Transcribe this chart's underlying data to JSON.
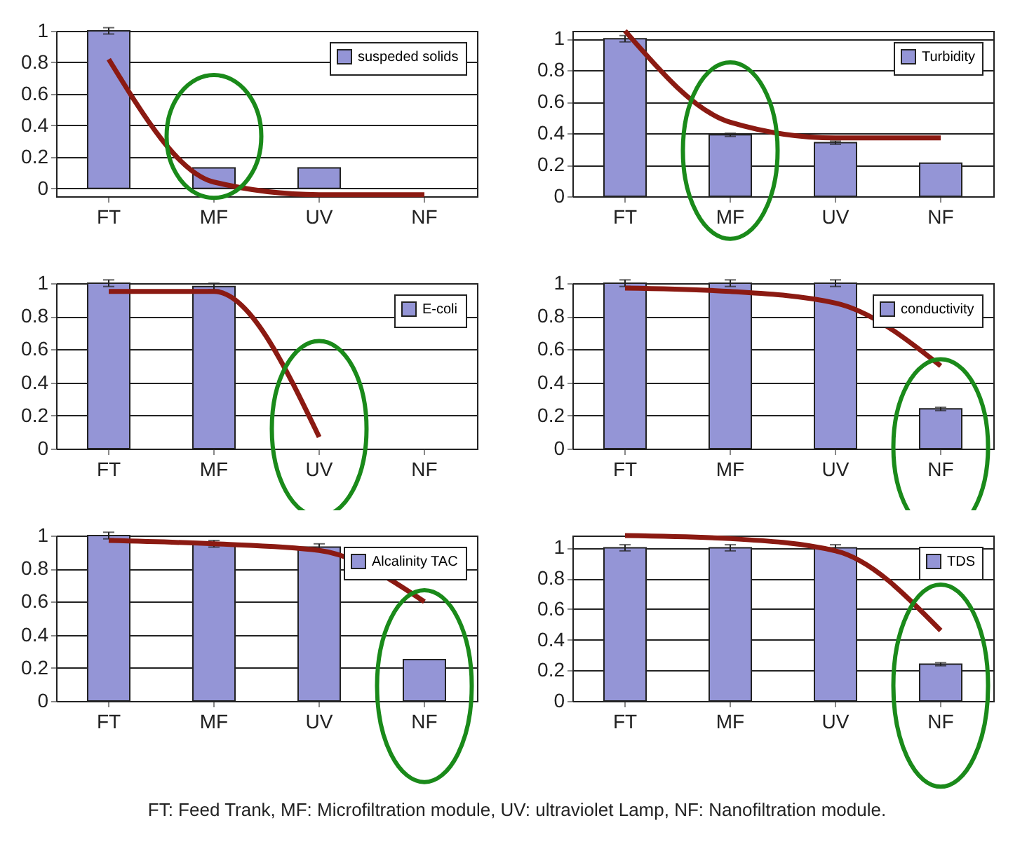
{
  "chart_data": [
    {
      "type": "bar",
      "categories": [
        "FT",
        "MF",
        "UV",
        "NF"
      ],
      "ylim": [
        -0.05,
        1
      ],
      "yticks": [
        0,
        0.2,
        0.4,
        0.6,
        0.8,
        1
      ],
      "grid": "y",
      "legend": "top right",
      "series": [
        {
          "name": "suspeded solids",
          "color": "#9495d6",
          "values": [
            1,
            0.13,
            0.13,
            0
          ],
          "errors": [
            0.02,
            null,
            null,
            null
          ]
        },
        {
          "type": "line",
          "color": "#8b1a12",
          "values": [
            0.82,
            0.04,
            -0.04,
            -0.04
          ]
        }
      ]
    },
    {
      "type": "bar",
      "categories": [
        "FT",
        "MF",
        "UV",
        "NF"
      ],
      "ylim": [
        0,
        1.05
      ],
      "yticks": [
        0,
        0.2,
        0.4,
        0.6,
        0.8,
        1
      ],
      "grid": "y",
      "legend": "top right",
      "series": [
        {
          "name": "Turbidity",
          "color": "#9495d6",
          "values": [
            1,
            0.39,
            0.34,
            0.21
          ],
          "errors": [
            0.02,
            0.01,
            0.01,
            null
          ]
        },
        {
          "type": "line",
          "color": "#8b1a12",
          "values": [
            1.05,
            0.47,
            0.37,
            0.37
          ]
        }
      ]
    },
    {
      "type": "bar",
      "categories": [
        "FT",
        "MF",
        "UV",
        "NF"
      ],
      "ylim": [
        0,
        1
      ],
      "yticks": [
        0,
        0.2,
        0.4,
        0.6,
        0.8,
        1
      ],
      "grid": "y",
      "legend": "top right",
      "series": [
        {
          "name": "E-coli",
          "color": "#9495d6",
          "values": [
            1,
            0.98,
            0,
            0
          ],
          "errors": [
            0.02,
            0.02,
            null,
            null
          ]
        },
        {
          "type": "line",
          "color": "#8b1a12",
          "values": [
            0.95,
            0.95,
            0.07,
            null
          ]
        }
      ]
    },
    {
      "type": "bar",
      "categories": [
        "FT",
        "MF",
        "UV",
        "NF"
      ],
      "ylim": [
        0,
        1
      ],
      "yticks": [
        0,
        0.2,
        0.4,
        0.6,
        0.8,
        1
      ],
      "grid": "y",
      "legend": "top right",
      "series": [
        {
          "name": "conductivity",
          "color": "#9495d6",
          "values": [
            1,
            1,
            1,
            0.24
          ],
          "errors": [
            0.02,
            0.02,
            0.02,
            0.01
          ]
        },
        {
          "type": "line",
          "color": "#8b1a12",
          "values": [
            0.97,
            0.95,
            0.88,
            0.5
          ]
        }
      ]
    },
    {
      "type": "bar",
      "categories": [
        "FT",
        "MF",
        "UV",
        "NF"
      ],
      "ylim": [
        0,
        1
      ],
      "yticks": [
        0,
        0.2,
        0.4,
        0.6,
        0.8,
        1
      ],
      "grid": "y",
      "legend": "top right",
      "series": [
        {
          "name": "Alcalinity TAC",
          "color": "#9495d6",
          "values": [
            1,
            0.95,
            0.93,
            0.25
          ],
          "errors": [
            0.02,
            0.02,
            0.02,
            null
          ]
        },
        {
          "type": "line",
          "color": "#8b1a12",
          "values": [
            0.97,
            0.95,
            0.91,
            0.6
          ]
        }
      ]
    },
    {
      "type": "bar",
      "categories": [
        "FT",
        "MF",
        "UV",
        "NF"
      ],
      "ylim": [
        0,
        1.08
      ],
      "yticks": [
        0,
        0.2,
        0.4,
        0.6,
        0.8,
        1
      ],
      "grid": "y",
      "legend": "top right",
      "annotations": [
        "FT: Feed Trank, MF: Microfiltration module, UV: ultraviolet Lamp, NF: Nanofiltration module."
      ],
      "series": [
        {
          "name": "TDS",
          "color": "#9495d6",
          "values": [
            1,
            1,
            1,
            0.24
          ],
          "errors": [
            0.02,
            0.02,
            0.02,
            0.01
          ]
        },
        {
          "type": "line",
          "color": "#8b1a12",
          "values": [
            1.08,
            1.06,
            0.98,
            0.46
          ]
        }
      ]
    }
  ]
}
